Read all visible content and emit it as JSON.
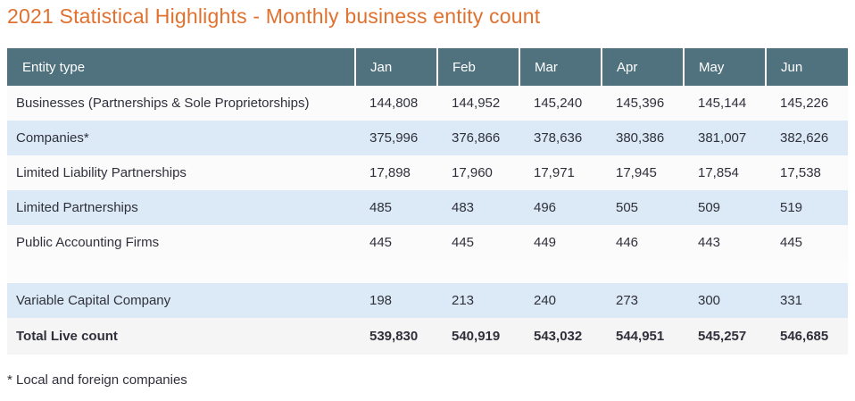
{
  "page": {
    "title": "2021 Statistical Highlights - Monthly business entity count",
    "footnote": "* Local and foreign companies"
  },
  "colors": {
    "title_orange": "#e0712f",
    "header_bg": "#50727e",
    "row_alt_blue": "#dbeaf6",
    "total_row_gray": "#f5f5f5"
  },
  "table": {
    "columns": [
      "Entity type",
      "Jan",
      "Feb",
      "Mar",
      "Apr",
      "May",
      "Jun"
    ],
    "rows": [
      {
        "type": "plain",
        "label": "Businesses (Partnerships & Sole Proprietorships)",
        "values": [
          "144,808",
          "144,952",
          "145,240",
          "145,396",
          "145,144",
          "145,226"
        ]
      },
      {
        "type": "alt",
        "label": "Companies*",
        "values": [
          "375,996",
          "376,866",
          "378,636",
          "380,386",
          "381,007",
          "382,626"
        ]
      },
      {
        "type": "plain",
        "label": "Limited Liability Partnerships",
        "values": [
          "17,898",
          "17,960",
          "17,971",
          "17,945",
          "17,854",
          "17,538"
        ]
      },
      {
        "type": "alt",
        "label": "Limited Partnerships",
        "values": [
          "485",
          "483",
          "496",
          "505",
          "509",
          "519"
        ]
      },
      {
        "type": "plain",
        "label": "Public Accounting Firms",
        "values": [
          "445",
          "445",
          "449",
          "446",
          "443",
          "445"
        ]
      },
      {
        "type": "spacer",
        "label": "",
        "values": [
          "",
          "",
          "",
          "",
          "",
          ""
        ]
      },
      {
        "type": "alt",
        "label": "Variable Capital Company",
        "values": [
          "198",
          "213",
          "240",
          "273",
          "300",
          "331"
        ]
      },
      {
        "type": "total",
        "label": "Total Live count",
        "values": [
          "539,830",
          "540,919",
          "543,032",
          "544,951",
          "545,257",
          "546,685"
        ]
      }
    ]
  },
  "chart_data": {
    "type": "table",
    "title": "2021 Statistical Highlights - Monthly business entity count",
    "categories": [
      "Jan",
      "Feb",
      "Mar",
      "Apr",
      "May",
      "Jun"
    ],
    "series": [
      {
        "name": "Businesses (Partnerships & Sole Proprietorships)",
        "values": [
          144808,
          144952,
          145240,
          145396,
          145144,
          145226
        ]
      },
      {
        "name": "Companies*",
        "values": [
          375996,
          376866,
          378636,
          380386,
          381007,
          382626
        ]
      },
      {
        "name": "Limited Liability Partnerships",
        "values": [
          17898,
          17960,
          17971,
          17945,
          17854,
          17538
        ]
      },
      {
        "name": "Limited Partnerships",
        "values": [
          485,
          483,
          496,
          505,
          509,
          519
        ]
      },
      {
        "name": "Public Accounting Firms",
        "values": [
          445,
          445,
          449,
          446,
          443,
          445
        ]
      },
      {
        "name": "Variable Capital Company",
        "values": [
          198,
          213,
          240,
          273,
          300,
          331
        ]
      },
      {
        "name": "Total Live count",
        "values": [
          539830,
          540919,
          543032,
          544951,
          545257,
          546685
        ]
      }
    ],
    "footnote": "* Local and foreign companies",
    "layout_hints": {
      "first_column_header": "Entity type",
      "zebra_striping": true,
      "spacer_row_before": "Variable Capital Company",
      "bold_total_row": true
    }
  }
}
